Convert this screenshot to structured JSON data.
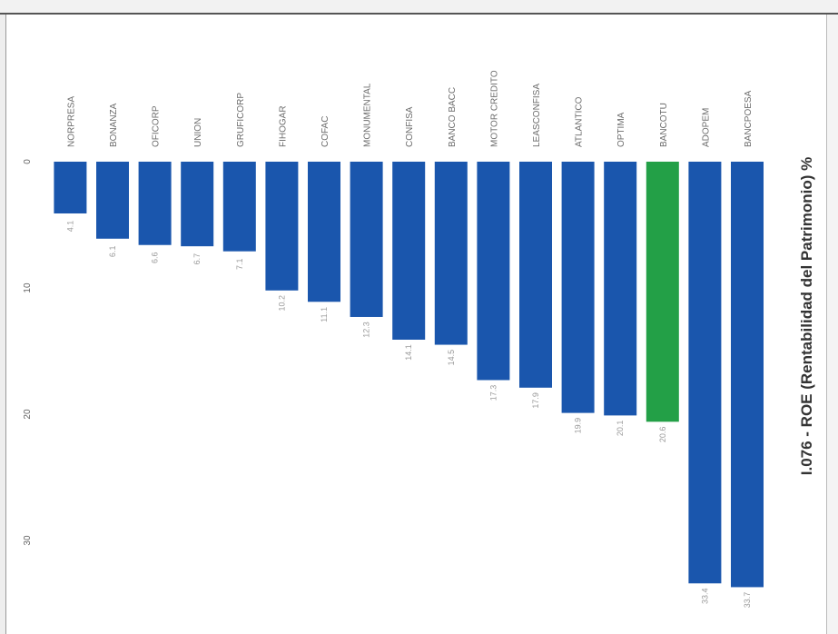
{
  "chart_data": {
    "type": "bar",
    "orientation": "horizontal",
    "title": "I.076 - ROE (Rentabilidad del Patrimonio) %",
    "categories": [
      "BANCPOESA",
      "ADOPEM",
      "BANCOTU",
      "OPTIMA",
      "ATLANTICO",
      "LEASCONFISA",
      "MOTOR CREDITO",
      "BANCO BACC",
      "CONFISA",
      "MONUMENTAL",
      "COFAC",
      "FIHOGAR",
      "GRUFICORP",
      "UNION",
      "OFICORP",
      "BONANZA",
      "NORPRESA"
    ],
    "values": [
      33.7,
      33.4,
      20.6,
      20.1,
      19.9,
      17.9,
      17.3,
      14.5,
      14.1,
      12.3,
      11.1,
      10.2,
      7.1,
      6.7,
      6.6,
      6.1,
      4.1
    ],
    "value_labels": [
      "33.7",
      "33.4",
      "20.6",
      "20.1",
      "19.9",
      "17.9",
      "17.3",
      "14.5",
      "14.1",
      "12.3",
      "11.1",
      "10.2",
      "7.1",
      "6.7",
      "6.6",
      "6.1",
      "4.1"
    ],
    "highlight_index": 2,
    "axis_ticks": [
      "0",
      "10",
      "20",
      "30"
    ],
    "xlim": [
      0,
      35
    ],
    "colors": {
      "bar": "#1a56ad",
      "highlight": "#23a047"
    },
    "grid": false,
    "legend": "none"
  }
}
